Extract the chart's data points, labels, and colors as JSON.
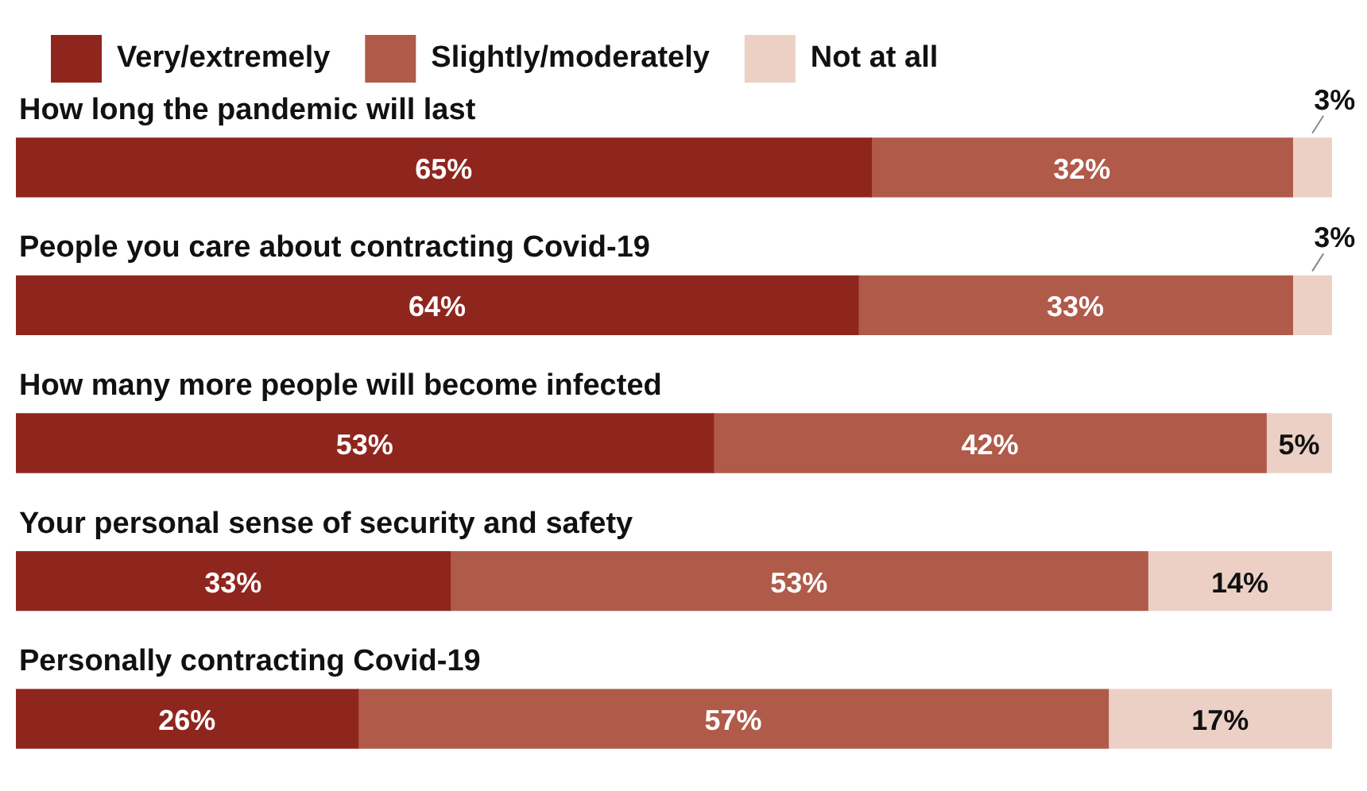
{
  "chart_data": {
    "type": "bar",
    "orientation": "horizontal",
    "stacked": true,
    "categories": [
      "How long the pandemic will last",
      "People you care about contracting Covid-19",
      "How many more people will become infected",
      "Your personal sense of security and safety",
      "Personally contracting Covid-19"
    ],
    "series": [
      {
        "name": "Very/extremely",
        "color": "#8f261e",
        "values": [
          65,
          64,
          53,
          33,
          26
        ],
        "value_labels": [
          "65%",
          "64%",
          "53%",
          "33%",
          "26%"
        ]
      },
      {
        "name": "Slightly/moderately",
        "color": "#b05a4a",
        "values": [
          32,
          33,
          42,
          53,
          57
        ],
        "value_labels": [
          "32%",
          "33%",
          "42%",
          "53%",
          "57%"
        ]
      },
      {
        "name": "Not at all",
        "color": "#ecd0c6",
        "values": [
          3,
          3,
          5,
          14,
          17
        ],
        "value_labels": [
          "3%",
          "3%",
          "5%",
          "14%",
          "17%"
        ]
      }
    ],
    "xlim": [
      0,
      100
    ],
    "legend": "top left"
  }
}
